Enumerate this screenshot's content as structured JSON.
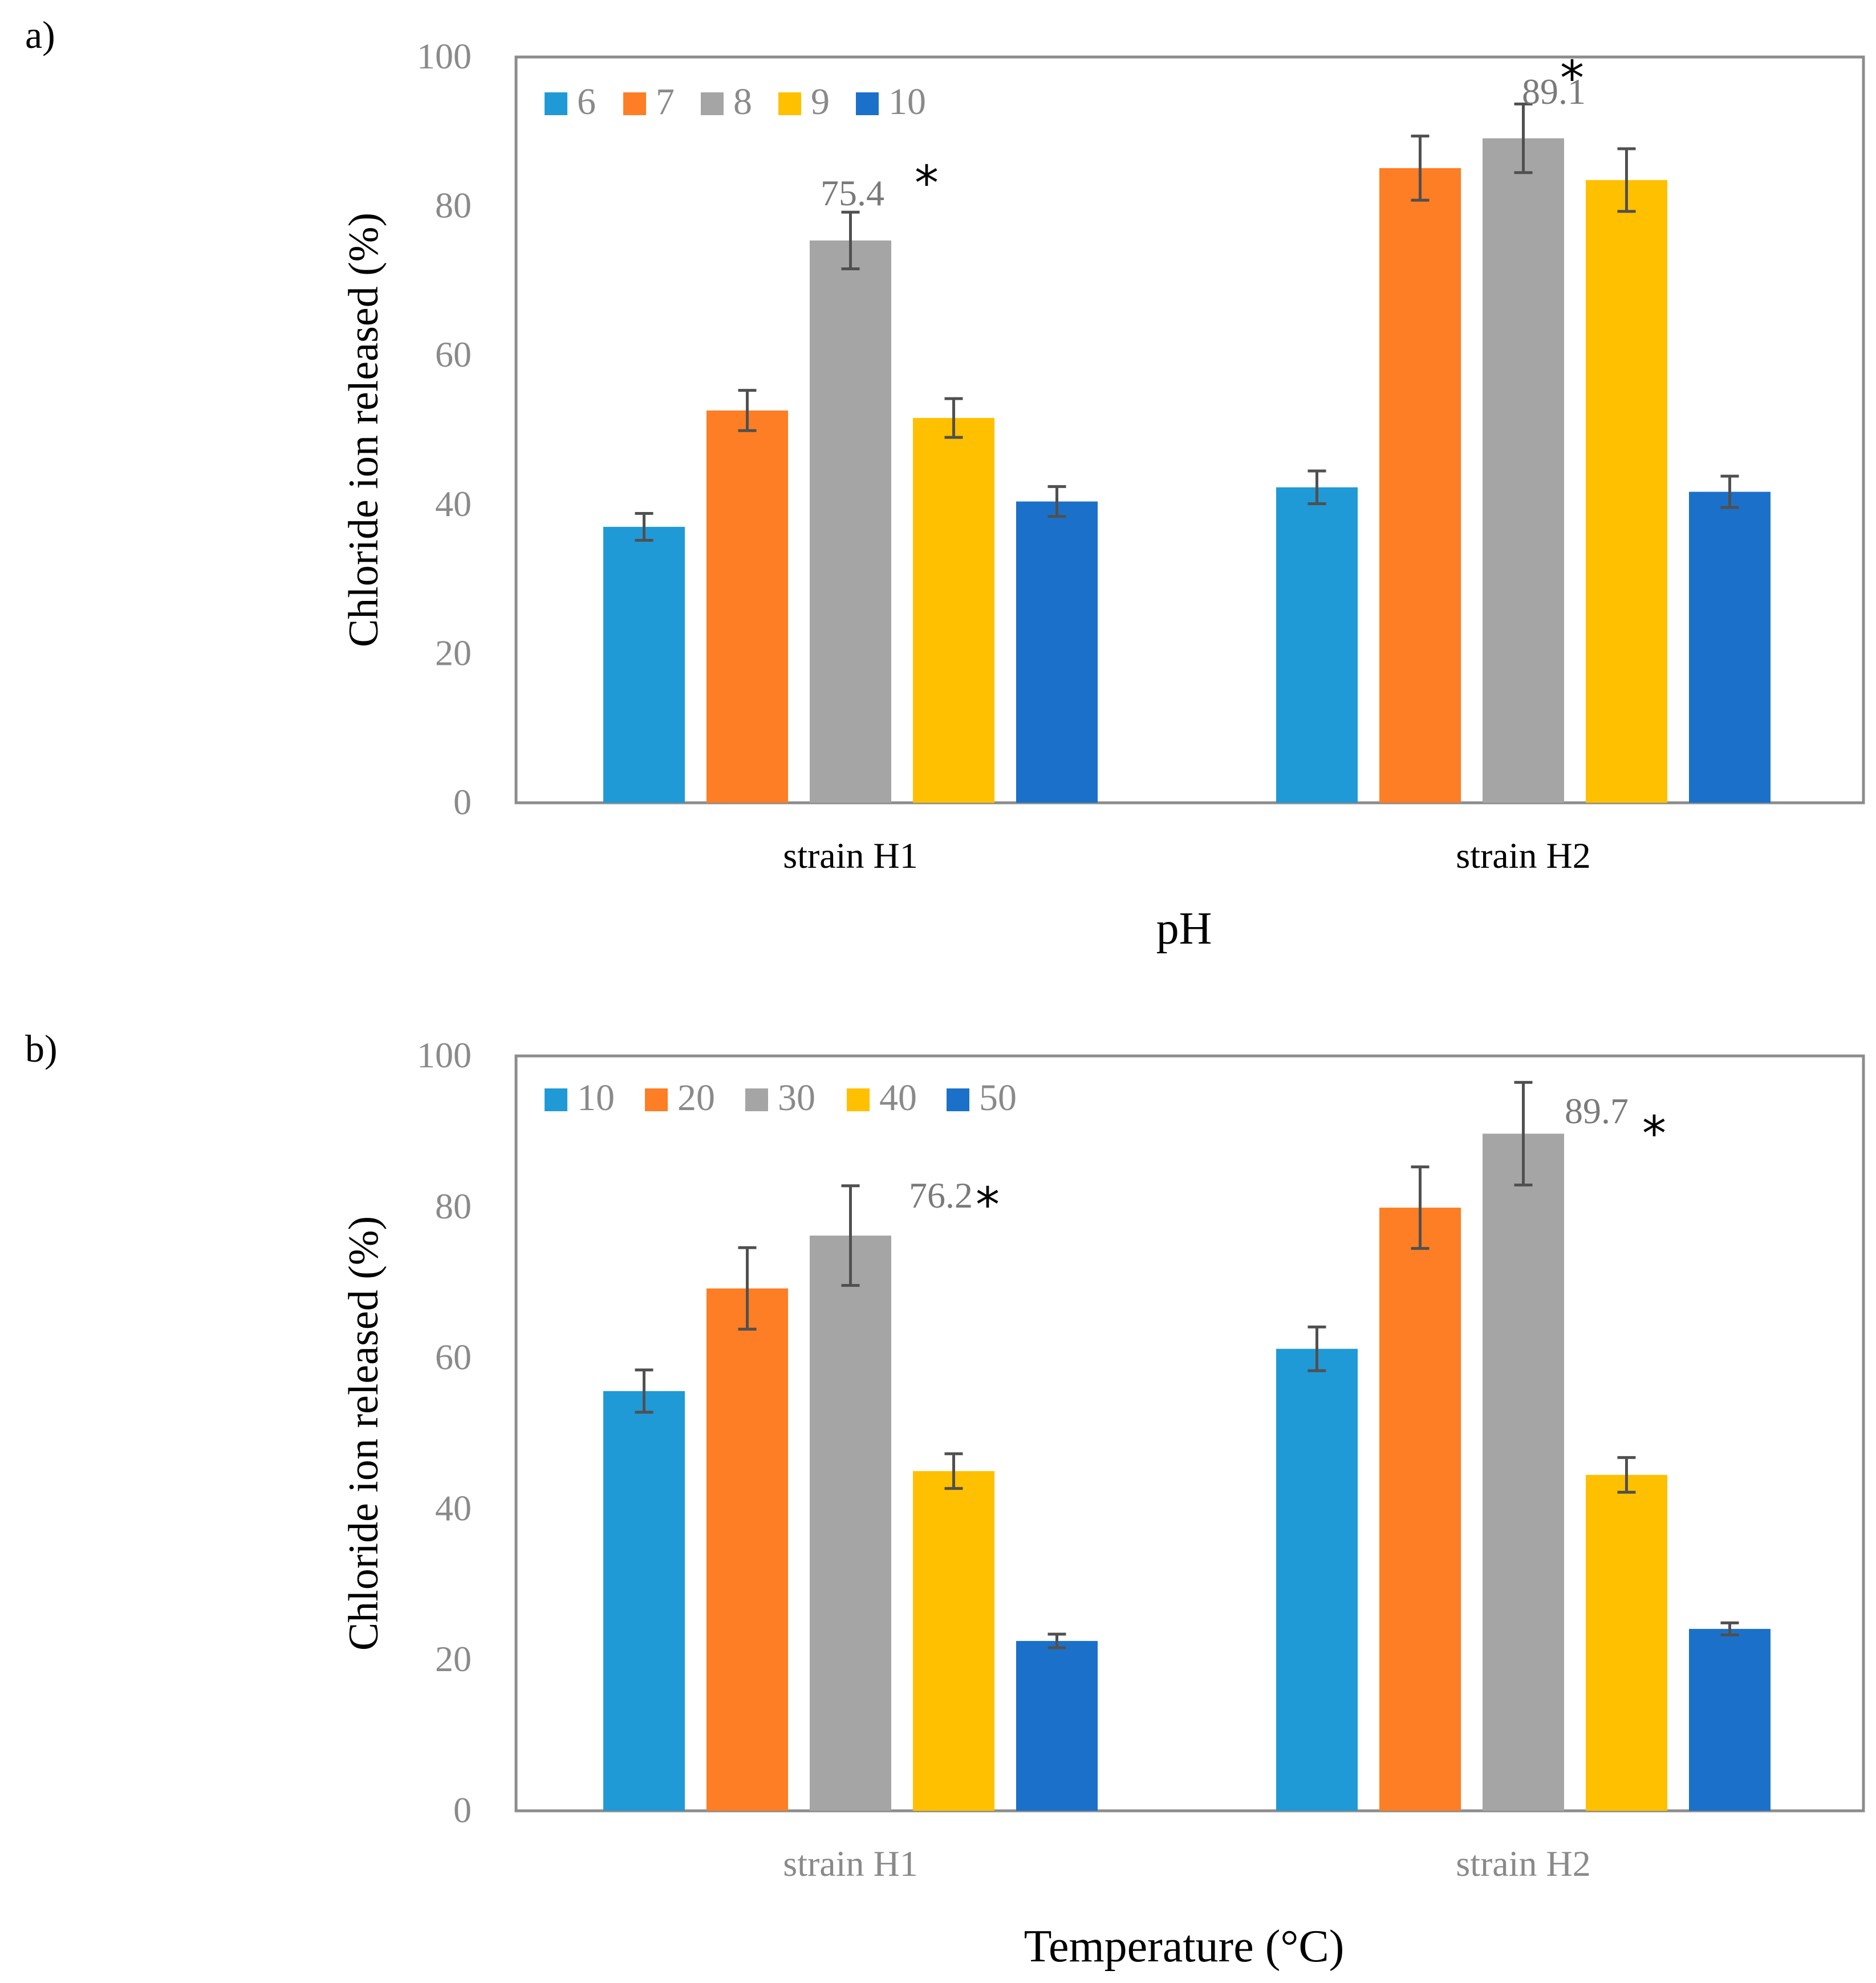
{
  "chart_data": [
    {
      "type": "bar",
      "panel_label": "a)",
      "title": "",
      "xlabel": "pH",
      "ylabel": "Chloride ion released (%)",
      "ylim": [
        0,
        100
      ],
      "yticks": [
        "0",
        "20",
        "40",
        "60",
        "80",
        "100"
      ],
      "categories": [
        "strain H1",
        "strain H2"
      ],
      "category_label_color": "#000000",
      "legend_position": "top-left",
      "series": [
        {
          "name": "6",
          "color": "#1f9ad6",
          "values": [
            37,
            42.3
          ],
          "errors": [
            1.8,
            2.2
          ]
        },
        {
          "name": "7",
          "color": "#fd7e24",
          "values": [
            52.6,
            85.1
          ],
          "errors": [
            2.7,
            4.3
          ]
        },
        {
          "name": "8",
          "color": "#a5a5a5",
          "values": [
            75.4,
            89.1
          ],
          "errors": [
            3.8,
            4.6
          ]
        },
        {
          "name": "9",
          "color": "#ffc000",
          "values": [
            51.6,
            83.5
          ],
          "errors": [
            2.6,
            4.2
          ]
        },
        {
          "name": "10",
          "color": "#1b71c9",
          "values": [
            40.4,
            41.7
          ],
          "errors": [
            2.0,
            2.1
          ]
        }
      ],
      "annotations": [
        {
          "category_index": 0,
          "series_index": 2,
          "label": "75.4",
          "marker": "*"
        },
        {
          "category_index": 1,
          "series_index": 2,
          "label": "89.1",
          "marker": "*"
        }
      ]
    },
    {
      "type": "bar",
      "panel_label": "b)",
      "title": "",
      "xlabel": "Temperature (°C)",
      "ylabel": "Chloride ion released (%)",
      "ylim": [
        0,
        100
      ],
      "yticks": [
        "0",
        "20",
        "40",
        "60",
        "80",
        "100"
      ],
      "categories": [
        "strain H1",
        "strain H2"
      ],
      "category_label_color": "#8a8a8a",
      "legend_position": "top-left",
      "series": [
        {
          "name": "10",
          "color": "#1f9ad6",
          "values": [
            55.6,
            61.2
          ],
          "errors": [
            2.8,
            2.9
          ]
        },
        {
          "name": "20",
          "color": "#fd7e24",
          "values": [
            69.2,
            79.9
          ],
          "errors": [
            5.4,
            5.4
          ]
        },
        {
          "name": "30",
          "color": "#a5a5a5",
          "values": [
            76.2,
            89.7
          ],
          "errors": [
            6.6,
            6.8
          ]
        },
        {
          "name": "40",
          "color": "#ffc000",
          "values": [
            45.0,
            44.5
          ],
          "errors": [
            2.3,
            2.3
          ]
        },
        {
          "name": "50",
          "color": "#1b71c9",
          "values": [
            22.5,
            24.1
          ],
          "errors": [
            0.9,
            0.8
          ]
        }
      ],
      "annotations": [
        {
          "category_index": 0,
          "series_index": 2,
          "label": "76.2",
          "marker": "*"
        },
        {
          "category_index": 1,
          "series_index": 2,
          "label": "89.7",
          "marker": "*"
        }
      ]
    }
  ]
}
